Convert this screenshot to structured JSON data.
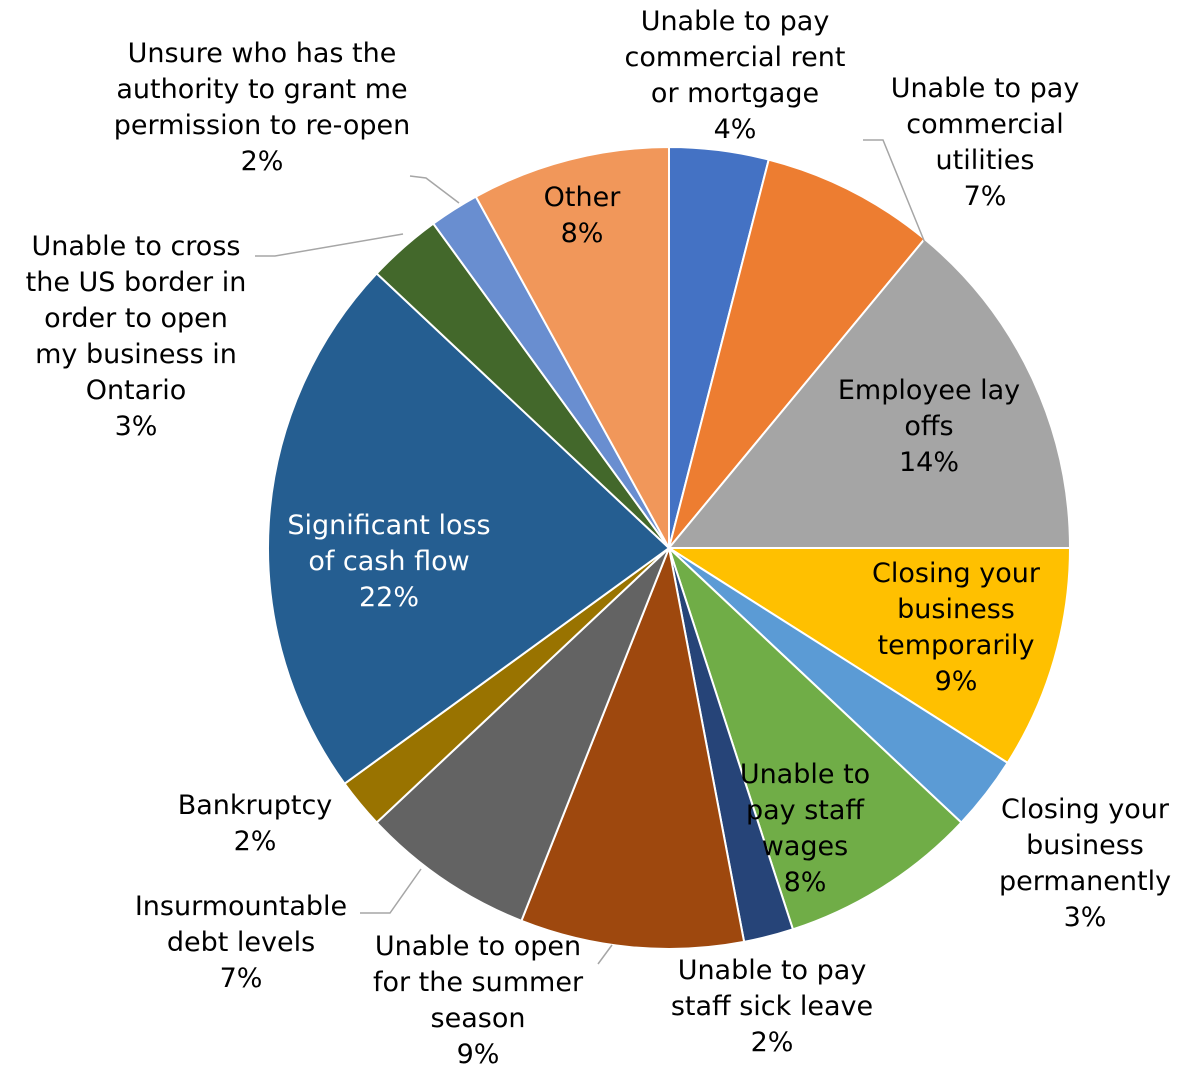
{
  "chart_data": {
    "type": "pie",
    "title": "",
    "slices": [
      {
        "label": "Unable to pay commercial rent or mortgage",
        "lines": [
          "Unable to pay",
          "commercial rent",
          "or mortgage"
        ],
        "value": 4,
        "value_label": "4%",
        "color": "#4472C4"
      },
      {
        "label": "Unable to pay commercial utilities",
        "lines": [
          "Unable to pay",
          "commercial",
          "utilities"
        ],
        "value": 7,
        "value_label": "7%",
        "color": "#ED7D31"
      },
      {
        "label": "Employee lay offs",
        "lines": [
          "Employee lay",
          "offs"
        ],
        "value": 14,
        "value_label": "14%",
        "color": "#A5A5A5"
      },
      {
        "label": "Closing your business temporarily",
        "lines": [
          "Closing your",
          "business",
          "temporarily"
        ],
        "value": 9,
        "value_label": "9%",
        "color": "#FFC000"
      },
      {
        "label": "Closing your business permanently",
        "lines": [
          "Closing your",
          "business",
          "permanently"
        ],
        "value": 3,
        "value_label": "3%",
        "color": "#5B9BD5"
      },
      {
        "label": "Unable to pay staff wages",
        "lines": [
          "Unable to",
          "pay staff",
          "wages"
        ],
        "value": 8,
        "value_label": "8%",
        "color": "#70AD47"
      },
      {
        "label": "Unable to pay staff sick leave",
        "lines": [
          "Unable to pay",
          "staff sick leave"
        ],
        "value": 2,
        "value_label": "2%",
        "color": "#264478"
      },
      {
        "label": "Unable to open for the summer season",
        "lines": [
          "Unable to open",
          "for the summer",
          "season"
        ],
        "value": 9,
        "value_label": "9%",
        "color": "#9E480E"
      },
      {
        "label": "Insurmountable debt levels",
        "lines": [
          "Insurmountable",
          "debt levels"
        ],
        "value": 7,
        "value_label": "7%",
        "color": "#636363"
      },
      {
        "label": "Bankruptcy",
        "lines": [
          "Bankruptcy"
        ],
        "value": 2,
        "value_label": "2%",
        "color": "#997300"
      },
      {
        "label": "Significant loss of cash flow",
        "lines": [
          "Significant loss",
          "of cash flow"
        ],
        "value": 22,
        "value_label": "22%",
        "color": "#255E91"
      },
      {
        "label": "Unable to cross the US border in order to open my business in Ontario",
        "lines": [
          "Unable to cross",
          "the US border in",
          "order to open",
          "my business in",
          "Ontario"
        ],
        "value": 3,
        "value_label": "3%",
        "color": "#43682B"
      },
      {
        "label": "Unsure who has the authority to grant me permission to re-open",
        "lines": [
          "Unsure who has the",
          "authority to grant me",
          "permission to re-open"
        ],
        "value": 2,
        "value_label": "2%",
        "color": "#698ED0"
      },
      {
        "label": "Other",
        "lines": [
          "Other"
        ],
        "value": 8,
        "value_label": "8%",
        "color": "#F1975A"
      }
    ]
  }
}
